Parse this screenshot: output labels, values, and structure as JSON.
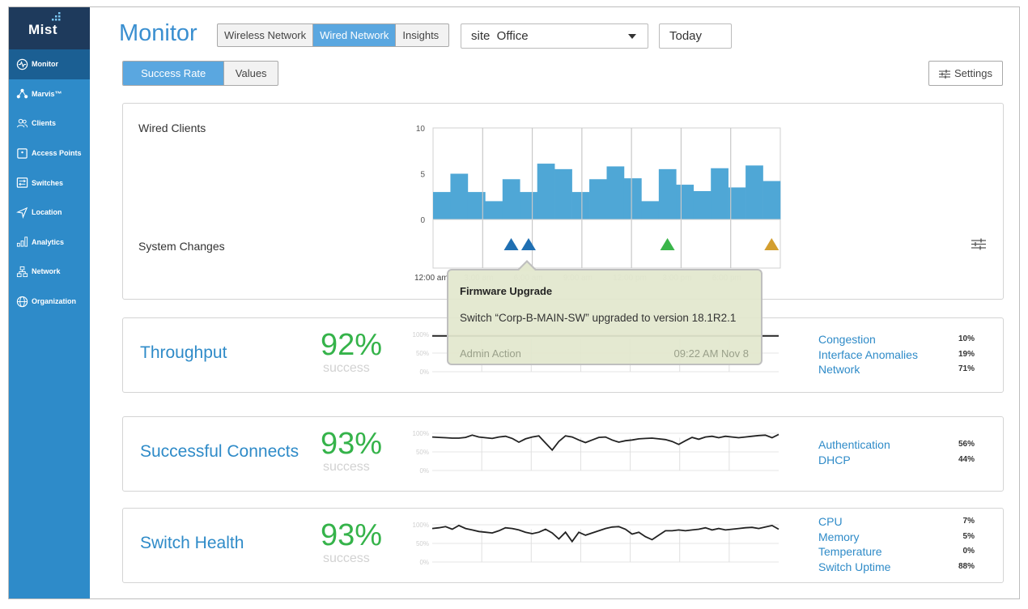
{
  "brand": {
    "name": "Mist"
  },
  "sidebar": {
    "items": [
      {
        "label": "Monitor",
        "icon": "pulse-icon",
        "active": true
      },
      {
        "label": "Marvis™",
        "icon": "marvis-icon",
        "active": false
      },
      {
        "label": "Clients",
        "icon": "clients-icon",
        "active": false
      },
      {
        "label": "Access Points",
        "icon": "access-point-icon",
        "active": false
      },
      {
        "label": "Switches",
        "icon": "switch-icon",
        "active": false
      },
      {
        "label": "Location",
        "icon": "location-icon",
        "active": false
      },
      {
        "label": "Analytics",
        "icon": "analytics-icon",
        "active": false
      },
      {
        "label": "Network",
        "icon": "network-icon",
        "active": false
      },
      {
        "label": "Organization",
        "icon": "globe-icon",
        "active": false
      }
    ]
  },
  "header": {
    "title": "Monitor",
    "network_tabs": [
      {
        "label": "Wireless Network",
        "active": false
      },
      {
        "label": "Wired Network",
        "active": true
      },
      {
        "label": "Insights",
        "active": false
      }
    ],
    "site_select": "site  Office",
    "date": "Today"
  },
  "mode_tabs": [
    {
      "label": "Success Rate",
      "active": true
    },
    {
      "label": "Values",
      "active": false
    }
  ],
  "settings_label": "Settings",
  "clients_card": {
    "wired_clients_label": "Wired Clients",
    "system_changes_label": "System Changes"
  },
  "chart_data": {
    "type": "bar",
    "title": "Wired Clients",
    "y_ticks": [
      "10",
      "5",
      "0"
    ],
    "ylim": [
      0,
      10
    ],
    "x_ticks": [
      "12:00 am",
      "3:00 am",
      "6:00 am",
      "9:00 am",
      "12:00 pm",
      "3:00 pm",
      "6:00 pm"
    ],
    "values": [
      3.0,
      5.0,
      3.0,
      2.0,
      4.4,
      3.0,
      6.1,
      5.5,
      3.0,
      4.4,
      5.8,
      4.5,
      2.0,
      5.5,
      3.8,
      3.1,
      5.6,
      3.5,
      5.9,
      4.2
    ],
    "bar_color": "#4fa7d6",
    "system_changes": [
      {
        "slot": 4,
        "color": "#1f6fb2"
      },
      {
        "slot": 5,
        "color": "#1f6fb2"
      },
      {
        "slot": 13,
        "color": "#3ab54a"
      },
      {
        "slot": 19,
        "color": "#d39e2f"
      }
    ]
  },
  "tooltip": {
    "title": "Firmware Upgrade",
    "body": "Switch “Corp-B-MAIN-SW” upgraded to version 18.1R2.1",
    "footer_left": "Admin Action",
    "footer_right": "09:22 AM Nov 8"
  },
  "metrics": [
    {
      "name": "Throughput",
      "percent": "92%",
      "sub": "success",
      "spark_ticks": [
        "100%",
        "50%",
        "0%"
      ],
      "spark": [
        96,
        96,
        96,
        96,
        96,
        96,
        96,
        96,
        96,
        96,
        96,
        96,
        96,
        96,
        96,
        96,
        96,
        96,
        96,
        96,
        96,
        96,
        96,
        96,
        96,
        96,
        96,
        96,
        96,
        96,
        96,
        96,
        96,
        96,
        96,
        96,
        96,
        96,
        96,
        96
      ],
      "classifiers": [
        {
          "name": "Congestion",
          "value": "10%"
        },
        {
          "name": "Interface Anomalies",
          "value": "19%"
        },
        {
          "name": "Network",
          "value": "71%"
        }
      ]
    },
    {
      "name": "Successful Connects",
      "percent": "93%",
      "sub": "success",
      "spark_ticks": [
        "100%",
        "50%",
        "0%"
      ],
      "spark": [
        90,
        89,
        88,
        87,
        87,
        89,
        95,
        90,
        88,
        86,
        90,
        92,
        86,
        76,
        85,
        90,
        93,
        74,
        55,
        78,
        93,
        90,
        82,
        75,
        82,
        89,
        90,
        82,
        76,
        80,
        82,
        85,
        86,
        87,
        85,
        83,
        78,
        70,
        80,
        89,
        84,
        90,
        92,
        88,
        92,
        90,
        88,
        90,
        92,
        94,
        95,
        88,
        97
      ],
      "classifiers": [
        {
          "name": "Authentication",
          "value": "56%"
        },
        {
          "name": "DHCP",
          "value": "44%"
        }
      ]
    },
    {
      "name": "Switch Health",
      "percent": "93%",
      "sub": "success",
      "spark_ticks": [
        "100%",
        "50%",
        "0%"
      ],
      "spark": [
        90,
        92,
        95,
        88,
        98,
        90,
        86,
        82,
        80,
        78,
        84,
        92,
        90,
        86,
        80,
        76,
        80,
        88,
        78,
        62,
        80,
        55,
        80,
        72,
        78,
        84,
        90,
        94,
        95,
        88,
        75,
        80,
        68,
        60,
        72,
        84,
        84,
        86,
        84,
        86,
        88,
        92,
        86,
        90,
        86,
        88,
        90,
        92,
        93,
        90,
        94,
        98,
        88
      ],
      "classifiers": [
        {
          "name": "CPU",
          "value": "7%"
        },
        {
          "name": "Memory",
          "value": "5%"
        },
        {
          "name": "Temperature",
          "value": "0%"
        },
        {
          "name": "Switch Uptime",
          "value": "88%"
        }
      ]
    }
  ]
}
